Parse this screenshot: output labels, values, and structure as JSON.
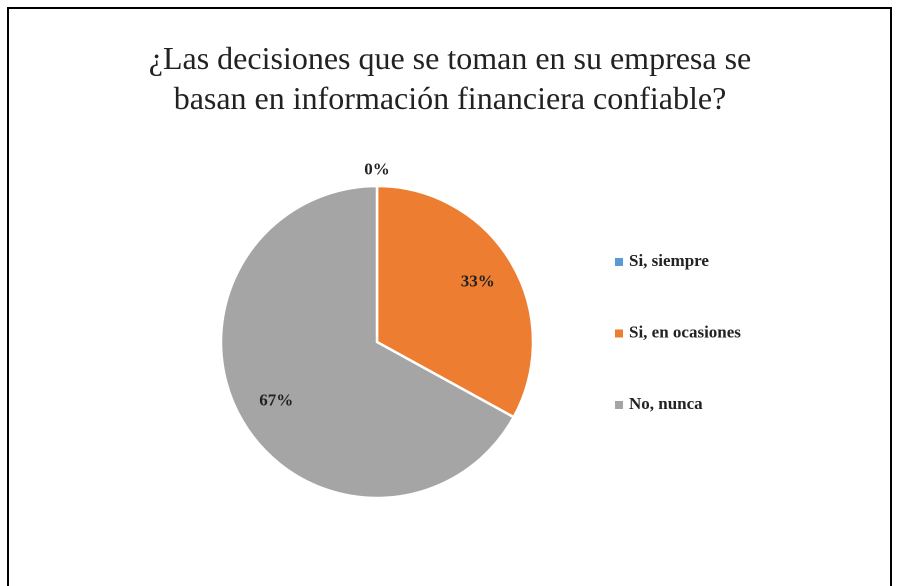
{
  "chart_data": {
    "type": "pie",
    "title": "¿Las decisiones que se toman en su empresa se basan en información financiera confiable?",
    "categories": [
      "Si, siempre",
      "Si, en ocasiones",
      "No, nunca"
    ],
    "values": [
      0,
      33,
      67
    ],
    "value_labels": [
      "0%",
      "33%",
      "67%"
    ],
    "colors": [
      "#5b9bd5",
      "#ed7d31",
      "#a5a5a5"
    ],
    "legend": "right"
  }
}
